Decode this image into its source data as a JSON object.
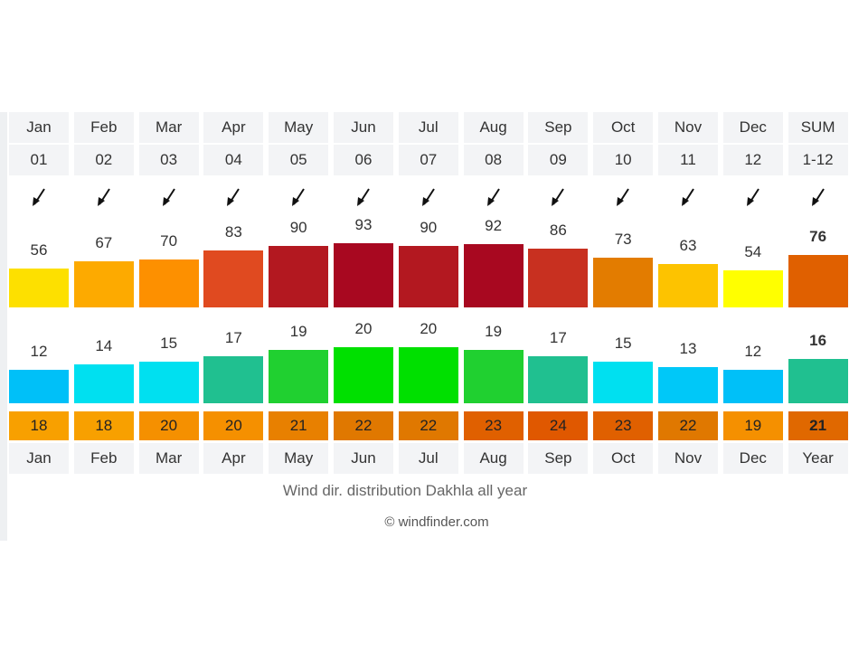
{
  "header": {
    "months": [
      "Jan",
      "Feb",
      "Mar",
      "Apr",
      "May",
      "Jun",
      "Jul",
      "Aug",
      "Sep",
      "Oct",
      "Nov",
      "Dec",
      "SUM"
    ],
    "numbers": [
      "01",
      "02",
      "03",
      "04",
      "05",
      "06",
      "07",
      "08",
      "09",
      "10",
      "11",
      "12",
      "1-12"
    ]
  },
  "footer": {
    "months": [
      "Jan",
      "Feb",
      "Mar",
      "Apr",
      "May",
      "Jun",
      "Jul",
      "Aug",
      "Sep",
      "Oct",
      "Nov",
      "Dec",
      "Year"
    ]
  },
  "caption": "Wind dir. distribution Dakhla all year",
  "credit": "© windfinder.com",
  "chart_data": [
    {
      "type": "bar",
      "categories": [
        "Jan",
        "Feb",
        "Mar",
        "Apr",
        "May",
        "Jun",
        "Jul",
        "Aug",
        "Sep",
        "Oct",
        "Nov",
        "Dec",
        "SUM"
      ],
      "values": [
        56,
        67,
        70,
        83,
        90,
        93,
        90,
        92,
        86,
        73,
        63,
        54,
        76
      ],
      "colors": [
        "#fde000",
        "#fdaa00",
        "#fd9000",
        "#e04a20",
        "#b31820",
        "#a80820",
        "#b31820",
        "#a80820",
        "#c83020",
        "#e37c00",
        "#fdc300",
        "#ffff00",
        "#e06000"
      ],
      "highlight_last": true
    },
    {
      "type": "bar",
      "categories": [
        "Jan",
        "Feb",
        "Mar",
        "Apr",
        "May",
        "Jun",
        "Jul",
        "Aug",
        "Sep",
        "Oct",
        "Nov",
        "Dec",
        "SUM"
      ],
      "values": [
        12,
        14,
        15,
        17,
        19,
        20,
        20,
        19,
        17,
        15,
        13,
        12,
        16
      ],
      "colors": [
        "#00c0f8",
        "#00e0f0",
        "#00e0f0",
        "#20c090",
        "#20d030",
        "#00e000",
        "#00e000",
        "#20d030",
        "#20c090",
        "#00e0f0",
        "#00c8f8",
        "#00c0f8",
        "#20c090"
      ],
      "highlight_last": true
    },
    {
      "type": "table",
      "categories": [
        "Jan",
        "Feb",
        "Mar",
        "Apr",
        "May",
        "Jun",
        "Jul",
        "Aug",
        "Sep",
        "Oct",
        "Nov",
        "Dec",
        "Year"
      ],
      "values": [
        18,
        18,
        20,
        20,
        21,
        22,
        22,
        23,
        24,
        23,
        22,
        19,
        21
      ],
      "colors": [
        "#f8a000",
        "#f8a000",
        "#f59000",
        "#f59000",
        "#e88000",
        "#e07800",
        "#e07800",
        "#e06000",
        "#e05800",
        "#e06000",
        "#e07800",
        "#f59000",
        "#e06800"
      ],
      "highlight_last": true
    }
  ],
  "icons": {
    "direction": "wind-direction-arrow-icon"
  }
}
